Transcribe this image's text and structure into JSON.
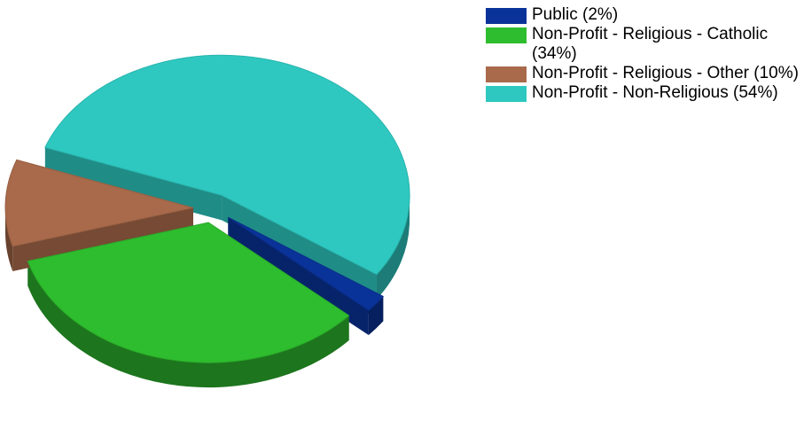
{
  "chart_data": {
    "type": "pie",
    "categories": [
      "Public (2%)",
      "Non-Profit - Religious - Catholic (34%)",
      "Non-Profit - Religious - Other (10%)",
      "Non-Profit - Non-Religious (54%)"
    ],
    "values": [
      2,
      34,
      10,
      54
    ],
    "colors": [
      "#0a3399",
      "#2ebd2e",
      "#a86a4a",
      "#2ec8c0"
    ]
  }
}
